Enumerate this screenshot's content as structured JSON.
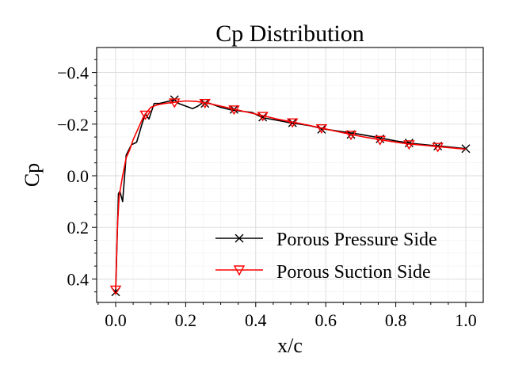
{
  "chart_data": {
    "type": "line",
    "title": "Cp Distribution",
    "xlabel": "x/c",
    "ylabel": "Cp",
    "xlim": [
      -0.05,
      1.05
    ],
    "ylim": [
      0.5,
      -0.5
    ],
    "y_inverted": true,
    "grid": true,
    "minor_grid": true,
    "legend_position": "lower-right",
    "x_ticks": [
      0.0,
      0.2,
      0.4,
      0.6,
      0.8,
      1.0
    ],
    "x_tick_labels": [
      "0.0",
      "0.2",
      "0.4",
      "0.6",
      "0.8",
      "1.0"
    ],
    "y_ticks": [
      -0.4,
      -0.2,
      0.0,
      0.2,
      0.4
    ],
    "y_tick_labels": [
      "−0.4",
      "−0.2",
      "0.0",
      "0.2",
      "0.4"
    ],
    "series": [
      {
        "name": "Porous Pressure Side",
        "color": "#000000",
        "marker": "x",
        "line_x": [
          0.0,
          0.008,
          0.012,
          0.02,
          0.03,
          0.045,
          0.06,
          0.075,
          0.085,
          0.095,
          0.11,
          0.125,
          0.14,
          0.155,
          0.168,
          0.18,
          0.2,
          0.22,
          0.235,
          0.25,
          0.27,
          0.3,
          0.33,
          0.36,
          0.39,
          0.42,
          0.46,
          0.5,
          0.55,
          0.6,
          0.65,
          0.7,
          0.75,
          0.8,
          0.85,
          0.9,
          0.95,
          1.0
        ],
        "line_y": [
          0.45,
          0.07,
          0.06,
          0.1,
          -0.08,
          -0.12,
          -0.13,
          -0.2,
          -0.24,
          -0.22,
          -0.28,
          -0.28,
          -0.285,
          -0.29,
          -0.295,
          -0.28,
          -0.27,
          -0.26,
          -0.27,
          -0.285,
          -0.28,
          -0.265,
          -0.255,
          -0.25,
          -0.245,
          -0.225,
          -0.215,
          -0.205,
          -0.195,
          -0.18,
          -0.17,
          -0.16,
          -0.148,
          -0.135,
          -0.125,
          -0.118,
          -0.112,
          -0.105
        ],
        "marker_x": [
          0.0,
          0.168,
          0.255,
          0.338,
          0.42,
          0.505,
          0.588,
          0.672,
          0.755,
          0.838,
          0.92,
          1.0
        ],
        "marker_y": [
          0.45,
          -0.295,
          -0.28,
          -0.257,
          -0.227,
          -0.205,
          -0.18,
          -0.16,
          -0.143,
          -0.127,
          -0.115,
          -0.105
        ]
      },
      {
        "name": "Porous Suction Side",
        "color": "#ff0000",
        "marker": "triangle-down",
        "line_x": [
          0.0,
          0.005,
          0.01,
          0.02,
          0.03,
          0.04,
          0.05,
          0.06,
          0.07,
          0.08,
          0.1,
          0.12,
          0.14,
          0.168,
          0.2,
          0.23,
          0.255,
          0.3,
          0.338,
          0.38,
          0.42,
          0.46,
          0.505,
          0.55,
          0.588,
          0.63,
          0.672,
          0.71,
          0.755,
          0.8,
          0.838,
          0.88,
          0.92,
          0.96,
          1.0
        ],
        "line_y": [
          0.44,
          0.2,
          0.08,
          0.0,
          -0.07,
          -0.1,
          -0.14,
          -0.17,
          -0.2,
          -0.23,
          -0.265,
          -0.275,
          -0.28,
          -0.285,
          -0.29,
          -0.288,
          -0.283,
          -0.27,
          -0.258,
          -0.245,
          -0.233,
          -0.22,
          -0.208,
          -0.196,
          -0.185,
          -0.172,
          -0.16,
          -0.15,
          -0.14,
          -0.13,
          -0.123,
          -0.118,
          -0.113,
          -0.108,
          -0.103
        ],
        "marker_x": [
          0.0,
          0.085,
          0.168,
          0.255,
          0.338,
          0.42,
          0.505,
          0.588,
          0.672,
          0.755,
          0.838,
          0.92
        ],
        "marker_y": [
          0.44,
          -0.238,
          -0.285,
          -0.283,
          -0.258,
          -0.233,
          -0.208,
          -0.185,
          -0.16,
          -0.14,
          -0.123,
          -0.113
        ]
      }
    ]
  }
}
